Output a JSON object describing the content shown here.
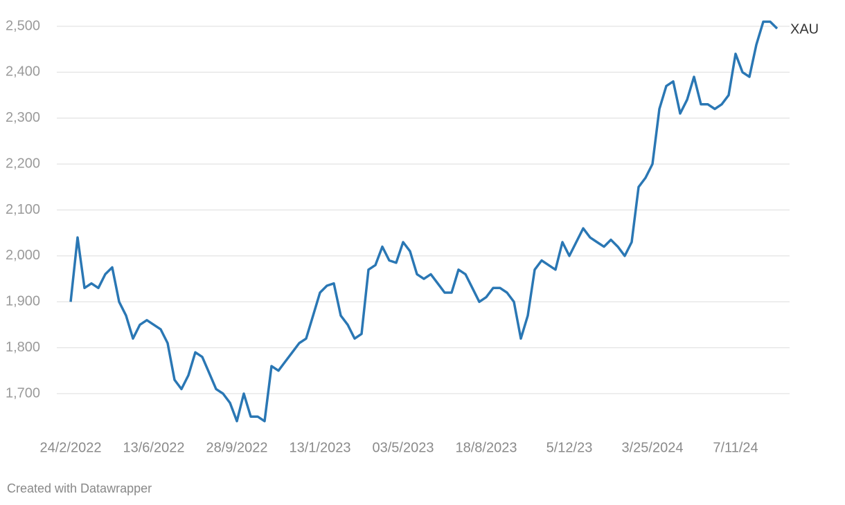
{
  "chart_data": {
    "type": "line",
    "credit": "Created with Datawrapper",
    "categories": [
      "24/2/2022",
      null,
      null,
      null,
      null,
      null,
      null,
      null,
      null,
      null,
      null,
      null,
      "13/6/2022",
      null,
      null,
      null,
      null,
      null,
      null,
      null,
      null,
      null,
      null,
      null,
      "28/9/2022",
      null,
      null,
      null,
      null,
      null,
      null,
      null,
      null,
      null,
      null,
      null,
      "13/1/2023",
      null,
      null,
      null,
      null,
      null,
      null,
      null,
      null,
      null,
      null,
      null,
      "03/5/2023",
      null,
      null,
      null,
      null,
      null,
      null,
      null,
      null,
      null,
      null,
      null,
      "18/8/2023",
      null,
      null,
      null,
      null,
      null,
      null,
      null,
      null,
      null,
      null,
      null,
      "5/12/23",
      null,
      null,
      null,
      null,
      null,
      null,
      null,
      null,
      null,
      null,
      null,
      "3/25/2024",
      null,
      null,
      null,
      null,
      null,
      null,
      null,
      null,
      null,
      null,
      null,
      "7/11/24",
      null,
      null,
      null,
      null,
      null,
      null
    ],
    "series": [
      {
        "name": "XAU",
        "color": "#2a77b4",
        "values": [
          1900,
          2040,
          1930,
          1940,
          1930,
          1960,
          1975,
          1900,
          1870,
          1820,
          1850,
          1860,
          1850,
          1840,
          1810,
          1730,
          1710,
          1740,
          1790,
          1780,
          1745,
          1710,
          1700,
          1680,
          1640,
          1700,
          1650,
          1650,
          1640,
          1760,
          1750,
          1770,
          1790,
          1810,
          1820,
          1870,
          1920,
          1935,
          1940,
          1870,
          1850,
          1820,
          1830,
          1970,
          1980,
          2020,
          1990,
          1985,
          2030,
          2010,
          1960,
          1950,
          1960,
          1940,
          1920,
          1920,
          1970,
          1960,
          1930,
          1900,
          1910,
          1930,
          1930,
          1920,
          1900,
          1820,
          1870,
          1970,
          1990,
          1980,
          1970,
          2030,
          2000,
          2030,
          2060,
          2040,
          2030,
          2020,
          2035,
          2020,
          2000,
          2030,
          2150,
          2170,
          2200,
          2320,
          2370,
          2380,
          2310,
          2340,
          2390,
          2330,
          2330,
          2320,
          2330,
          2350,
          2440,
          2400,
          2390,
          2460,
          2510,
          2510,
          2495
        ]
      }
    ],
    "ylim": [
      1620,
      2530
    ],
    "yticks": [
      {
        "value": 1700,
        "label": "1,700"
      },
      {
        "value": 1800,
        "label": "1,800"
      },
      {
        "value": 1900,
        "label": "1,900"
      },
      {
        "value": 2000,
        "label": "2,000"
      },
      {
        "value": 2100,
        "label": "2,100"
      },
      {
        "value": 2200,
        "label": "2,200"
      },
      {
        "value": 2300,
        "label": "2,300"
      },
      {
        "value": 2400,
        "label": "2,400"
      },
      {
        "value": 2500,
        "label": "2,500"
      }
    ],
    "grid": true
  }
}
